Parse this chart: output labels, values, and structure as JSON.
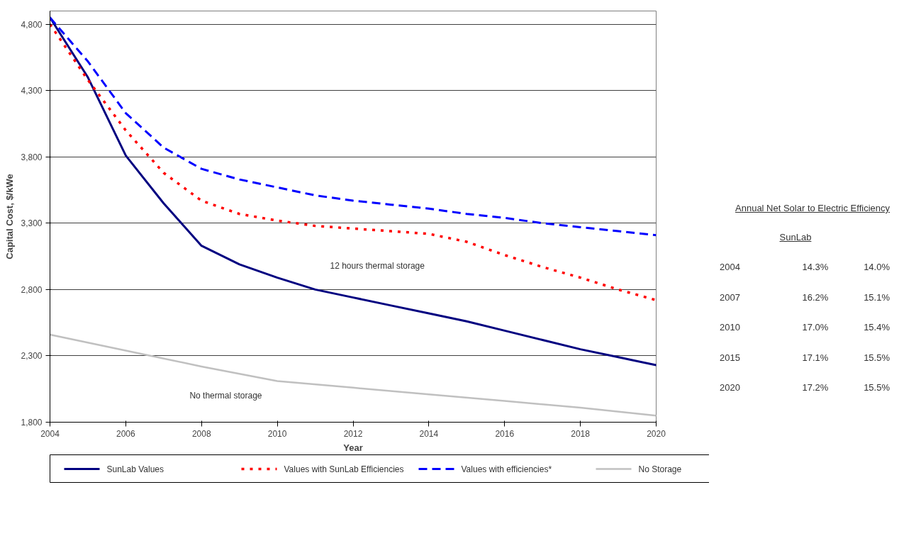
{
  "chart_data": {
    "type": "line",
    "xlabel": "Year",
    "ylabel": "Capital Cost, $/kWe",
    "x": [
      2004,
      2005,
      2006,
      2007,
      2008,
      2009,
      2010,
      2011,
      2012,
      2013,
      2014,
      2015,
      2016,
      2017,
      2018,
      2019,
      2020
    ],
    "xlim": [
      2004,
      2020
    ],
    "xticks": [
      2004,
      2006,
      2008,
      2010,
      2012,
      2014,
      2016,
      2018,
      2020
    ],
    "ylim": [
      1800,
      4900
    ],
    "yticks": [
      {
        "value": 1800,
        "label": "1,800"
      },
      {
        "value": 2300,
        "label": "2,300"
      },
      {
        "value": 2800,
        "label": "2,800"
      },
      {
        "value": 3300,
        "label": "3,300"
      },
      {
        "value": 3800,
        "label": "3,800"
      },
      {
        "value": 4300,
        "label": "4,300"
      },
      {
        "value": 4800,
        "label": "4,800"
      }
    ],
    "grid": "y",
    "legend": "bottom",
    "series": [
      {
        "name": "SunLab Values",
        "color": "#000080",
        "line_style": "solid",
        "values": [
          4850,
          4400,
          3810,
          3450,
          3130,
          2990,
          2890,
          2800,
          2740,
          2680,
          2620,
          2560,
          2490,
          2420,
          2350,
          2290,
          2230
        ]
      },
      {
        "name": "Values with SunLab Efficiencies",
        "color": "#ff0000",
        "line_style": "dotted",
        "values": [
          4800,
          4380,
          4000,
          3680,
          3470,
          3370,
          3320,
          3280,
          3260,
          3240,
          3220,
          3160,
          3060,
          2970,
          2890,
          2800,
          2720
        ]
      },
      {
        "name": "Values with efficiencies*",
        "color": "#0000ff",
        "line_style": "dashed",
        "values": [
          4850,
          4520,
          4130,
          3870,
          3710,
          3630,
          3570,
          3510,
          3470,
          3440,
          3410,
          3370,
          3340,
          3300,
          3270,
          3240,
          3210
        ]
      },
      {
        "name": "No Storage",
        "color": "#c0c0c0",
        "line_style": "solid",
        "x": [
          2004,
          2006,
          2008,
          2010,
          2012,
          2014,
          2016,
          2018,
          2020
        ],
        "values": [
          2460,
          2340,
          2220,
          2110,
          2060,
          2010,
          1960,
          1910,
          1850
        ]
      }
    ],
    "annotations": [
      "12 hours thermal storage",
      "No thermal storage",
      "Annual Net Solar to Electric Efficiency",
      "SunLab",
      "2004",
      "14.3%",
      "14.0%",
      "2007",
      "16.2%",
      "15.1%",
      "2010",
      "17.0%",
      "15.4%",
      "2015",
      "17.1%",
      "15.5%",
      "2020",
      "17.2%",
      "15.5%"
    ]
  }
}
